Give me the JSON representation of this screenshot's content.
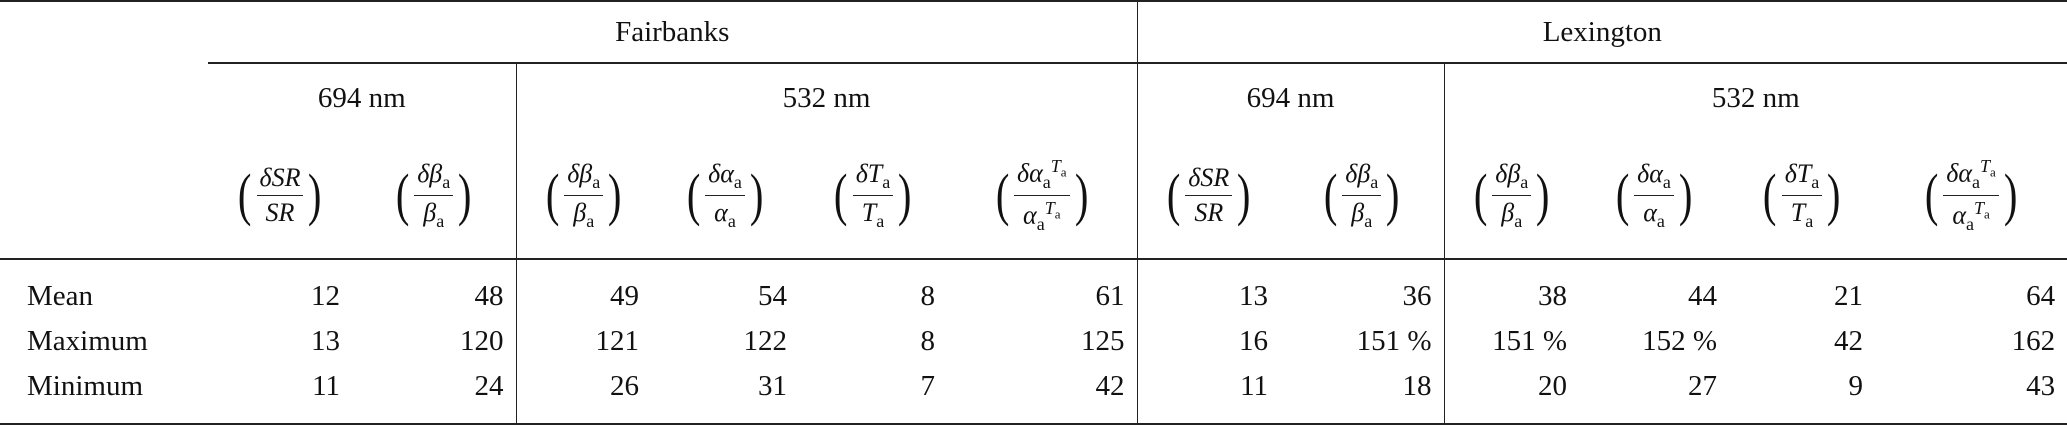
{
  "sites": [
    "Fairbanks",
    "Lexington"
  ],
  "wavelengths": [
    "694 nm",
    "532 nm"
  ],
  "column_headers": [
    {
      "num": "δSR",
      "num_sub": "",
      "den": "SR",
      "den_sub": ""
    },
    {
      "num": "δβ",
      "num_sub": "a",
      "den": "β",
      "den_sub": "a"
    },
    {
      "num": "δβ",
      "num_sub": "a",
      "den": "β",
      "den_sub": "a"
    },
    {
      "num": "δα",
      "num_sub": "a",
      "den": "α",
      "den_sub": "a"
    },
    {
      "num": "δT",
      "num_sub": "a",
      "den": "T",
      "den_sub": "a"
    },
    {
      "num": "δα",
      "num_sub": "a",
      "num_sup": "T",
      "num_sup_sub": "a",
      "den": "α",
      "den_sub": "a",
      "den_sup": "T",
      "den_sup_sub": "a"
    }
  ],
  "rows": [
    {
      "label": "Mean",
      "fairbanks": [
        "12",
        "48",
        "49",
        "54",
        "8",
        "61"
      ],
      "lexington": [
        "13",
        "36",
        "38",
        "44",
        "21",
        "64"
      ]
    },
    {
      "label": "Maximum",
      "fairbanks": [
        "13",
        "120",
        "121",
        "122",
        "8",
        "125"
      ],
      "lexington": [
        "16",
        "151 %",
        "151 %",
        "152 %",
        "42",
        "162"
      ]
    },
    {
      "label": "Minimum",
      "fairbanks": [
        "11",
        "24",
        "26",
        "31",
        "7",
        "42"
      ],
      "lexington": [
        "11",
        "18",
        "20",
        "27",
        "9",
        "43"
      ]
    }
  ]
}
